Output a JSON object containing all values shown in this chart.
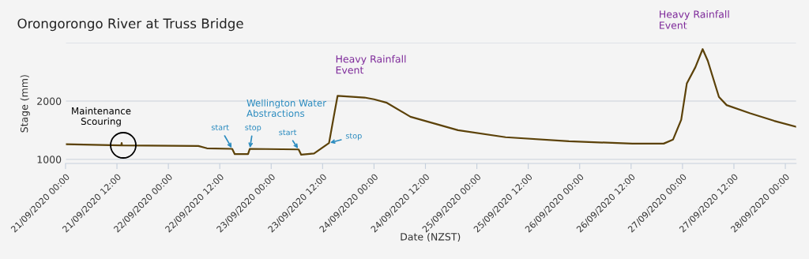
{
  "chart_data": {
    "type": "line",
    "title": "Orongorongo River at Truss Bridge",
    "xlabel": "Date (NZST)",
    "ylabel": "Stage (mm)",
    "x": [
      "2020-09-21T00:00",
      "2020-09-21T13:00",
      "2020-09-21T13:06",
      "2020-09-21T13:12",
      "2020-09-22T07:00",
      "2020-09-22T09:00",
      "2020-09-22T14:54",
      "2020-09-22T15:30",
      "2020-09-22T18:36",
      "2020-09-22T19:00",
      "2020-09-23T06:24",
      "2020-09-23T07:00",
      "2020-09-23T10:00",
      "2020-09-23T13:30",
      "2020-09-23T14:36",
      "2020-09-23T15:30",
      "2020-09-23T21:48",
      "2020-09-24T00:00",
      "2020-09-24T03:00",
      "2020-09-24T08:30",
      "2020-09-24T19:36",
      "2020-09-25T06:42",
      "2020-09-25T21:30",
      "2020-09-26T12:18",
      "2020-09-26T19:36",
      "2020-09-26T21:48",
      "2020-09-26T23:42",
      "2020-09-27T01:00",
      "2020-09-27T03:00",
      "2020-09-27T04:42",
      "2020-09-27T05:54",
      "2020-09-27T08:30",
      "2020-09-27T10:18",
      "2020-09-27T15:48",
      "2020-09-27T21:24",
      "2020-09-28T02:30"
    ],
    "series": [
      {
        "color": "#5c4209",
        "values": [
          1260,
          1240,
          1280,
          1240,
          1230,
          1190,
          1180,
          1090,
          1090,
          1180,
          1170,
          1080,
          1100,
          1280,
          1730,
          2090,
          2060,
          2030,
          1970,
          1730,
          1500,
          1380,
          1310,
          1270,
          1270,
          1340,
          1680,
          2300,
          2580,
          2890,
          2690,
          2070,
          1930,
          1790,
          1660,
          1560
        ]
      }
    ],
    "xlim": [
      "2020-09-21T00:00",
      "2020-09-28T02:30"
    ],
    "xticks": [
      {
        "value": "2020-09-21T00:00",
        "label": "21/09/2020 00:00"
      },
      {
        "value": "2020-09-21T12:00",
        "label": "21/09/2020 12:00"
      },
      {
        "value": "2020-09-22T00:00",
        "label": "22/09/2020 00:00"
      },
      {
        "value": "2020-09-22T12:00",
        "label": "22/09/2020 12:00"
      },
      {
        "value": "2020-09-23T00:00",
        "label": "23/09/2020 00:00"
      },
      {
        "value": "2020-09-23T12:00",
        "label": "23/09/2020 12:00"
      },
      {
        "value": "2020-09-24T00:00",
        "label": "24/09/2020 00:00"
      },
      {
        "value": "2020-09-24T12:00",
        "label": "24/09/2020 12:00"
      },
      {
        "value": "2020-09-25T00:00",
        "label": "25/09/2020 00:00"
      },
      {
        "value": "2020-09-25T12:00",
        "label": "25/09/2020 12:00"
      },
      {
        "value": "2020-09-26T00:00",
        "label": "26/09/2020 00:00"
      },
      {
        "value": "2020-09-26T12:00",
        "label": "26/09/2020 12:00"
      },
      {
        "value": "2020-09-27T00:00",
        "label": "27/09/2020 00:00"
      },
      {
        "value": "2020-09-27T12:00",
        "label": "27/09/2020 12:00"
      },
      {
        "value": "2020-09-28T00:00",
        "label": "28/09/2020 00:00"
      }
    ],
    "ylim": [
      930,
      3000
    ],
    "yticks": [
      1000,
      2000,
      {
        "value": 3000,
        "label": null
      }
    ],
    "grid": "y",
    "marker": "none",
    "line_style": "solid",
    "annotations": [
      "Maintenance\nScouring",
      "Wellington Water\nAbstractions",
      {
        "text": "start",
        "x": "2020-09-22T14:54",
        "y": 1180
      },
      {
        "text": "stop",
        "x": "2020-09-22T19:00",
        "y": 1180
      },
      {
        "text": "start",
        "x": "2020-09-23T06:24",
        "y": 1170
      },
      {
        "text": "stop",
        "x": "2020-09-23T13:30",
        "y": 1280
      },
      {
        "text": "Heavy Rainfall\nEvent",
        "x": "2020-09-23T15:30",
        "y": 2085
      },
      {
        "text": "Heavy Rainfall\nEvent",
        "x": "2020-09-27T04:42",
        "y": 2890
      }
    ]
  }
}
